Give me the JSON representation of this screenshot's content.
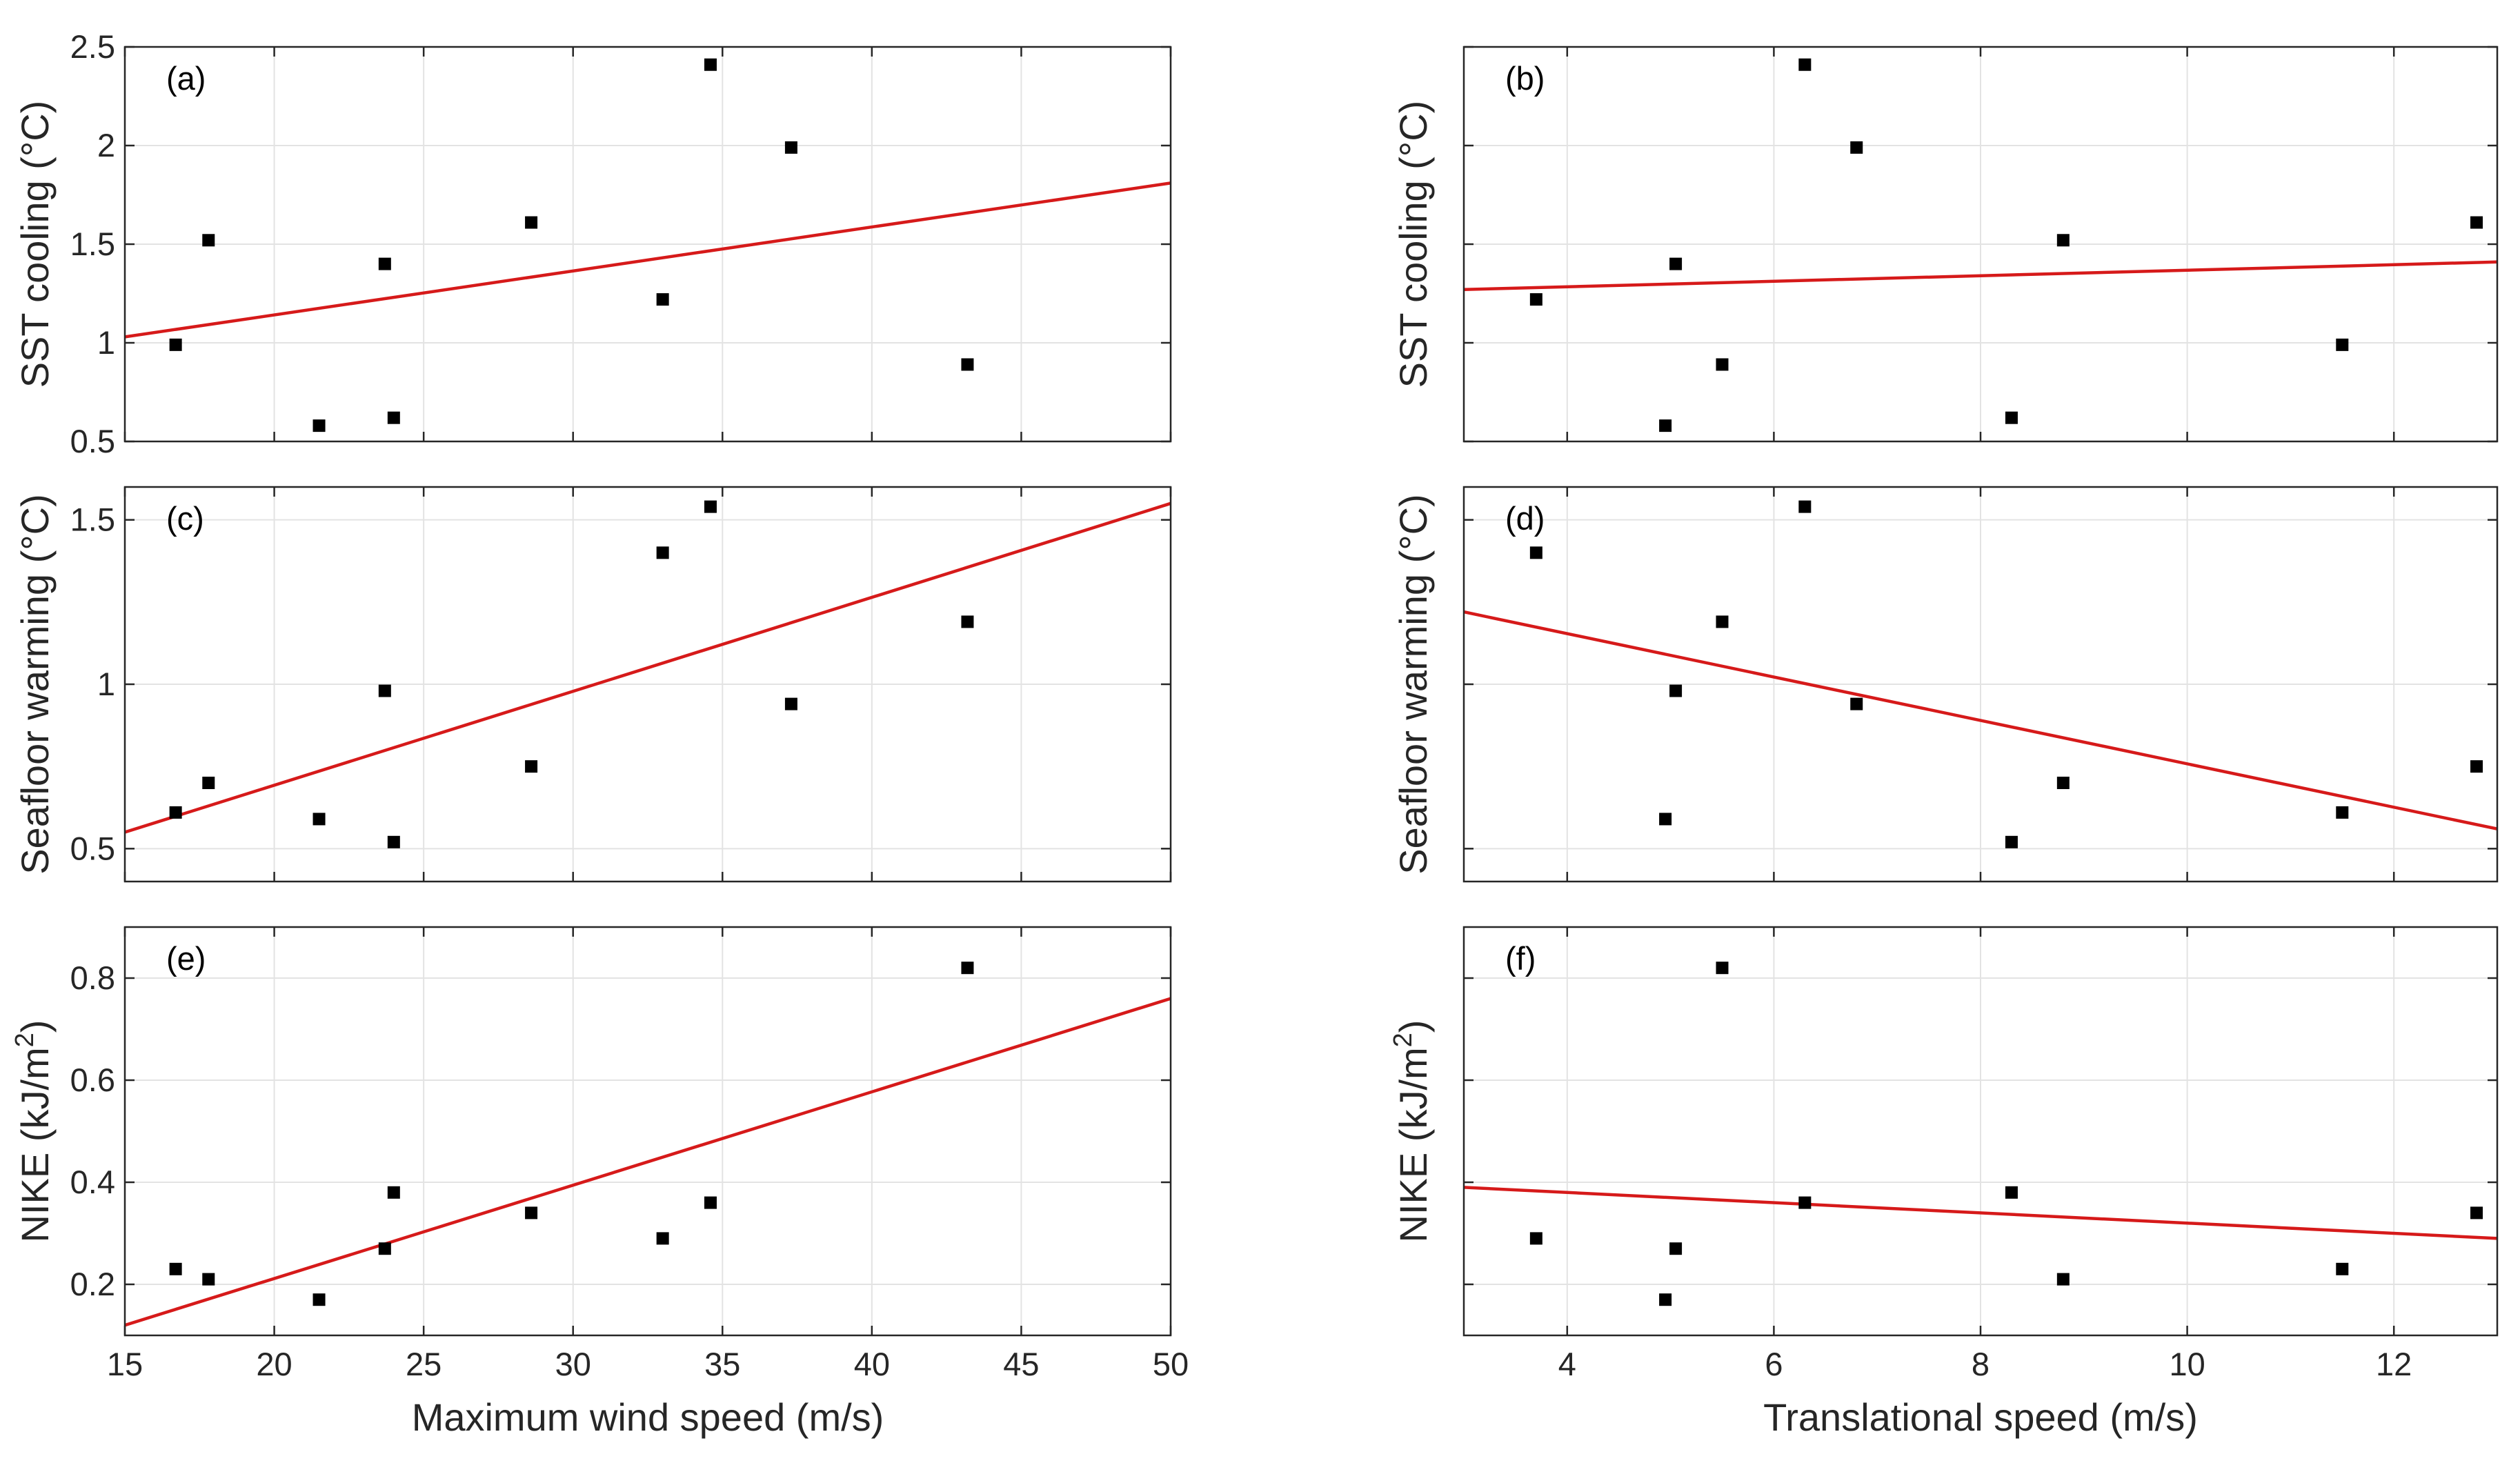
{
  "figure": {
    "background": "#ffffff",
    "point_color": "#000000",
    "fit_color": "#d61a1a"
  },
  "chart_data": [
    {
      "id": "a",
      "panel_label": "(a)",
      "type": "scatter",
      "ylabel": "SST cooling (°C)",
      "xlabel": "",
      "xlim": [
        15,
        50
      ],
      "ylim": [
        0.5,
        2.5
      ],
      "xticks": [
        15,
        20,
        25,
        30,
        35,
        40,
        45,
        50
      ],
      "yticks": [
        0.5,
        1,
        1.5,
        2,
        2.5
      ],
      "xticklabels": [
        "",
        "",
        "",
        "",
        "",
        "",
        "",
        ""
      ],
      "yticklabels": [
        "0.5",
        "1",
        "1.5",
        "2",
        "2.5"
      ],
      "points": {
        "x": [
          16.7,
          17.8,
          21.5,
          23.7,
          24.0,
          28.6,
          33.0,
          34.6,
          37.3,
          43.2
        ],
        "y": [
          0.99,
          1.52,
          0.58,
          1.4,
          0.62,
          1.61,
          1.22,
          2.41,
          1.99,
          0.89
        ]
      },
      "fit": {
        "x": [
          15,
          50
        ],
        "y": [
          1.03,
          1.81
        ]
      }
    },
    {
      "id": "b",
      "panel_label": "(b)",
      "type": "scatter",
      "ylabel": "SST cooling (°C)",
      "xlabel": "",
      "xlim": [
        3,
        13
      ],
      "ylim": [
        0.5,
        2.5
      ],
      "xticks": [
        4,
        6,
        8,
        10,
        12
      ],
      "yticks": [
        0.5,
        1,
        1.5,
        2,
        2.5
      ],
      "xticklabels": [
        "",
        "",
        "",
        "",
        ""
      ],
      "yticklabels": [
        "",
        "",
        "",
        "",
        ""
      ],
      "points": {
        "x": [
          3.7,
          4.95,
          5.05,
          5.5,
          6.3,
          6.8,
          8.3,
          8.8,
          11.5,
          12.8
        ],
        "y": [
          1.22,
          0.58,
          1.4,
          0.89,
          2.41,
          1.99,
          0.62,
          1.52,
          0.99,
          1.61
        ]
      },
      "fit": {
        "x": [
          3,
          13
        ],
        "y": [
          1.27,
          1.41
        ]
      }
    },
    {
      "id": "c",
      "panel_label": "(c)",
      "type": "scatter",
      "ylabel": "Seafloor warming (°C)",
      "xlabel": "",
      "xlim": [
        15,
        50
      ],
      "ylim": [
        0.4,
        1.6
      ],
      "xticks": [
        15,
        20,
        25,
        30,
        35,
        40,
        45,
        50
      ],
      "yticks": [
        0.5,
        1,
        1.5
      ],
      "xticklabels": [
        "",
        "",
        "",
        "",
        "",
        "",
        "",
        ""
      ],
      "yticklabels": [
        "0.5",
        "1",
        "1.5"
      ],
      "points": {
        "x": [
          16.7,
          17.8,
          21.5,
          23.7,
          24.0,
          28.6,
          33.0,
          34.6,
          37.3,
          43.2
        ],
        "y": [
          0.61,
          0.7,
          0.59,
          0.98,
          0.52,
          0.75,
          1.4,
          1.54,
          0.94,
          1.19
        ]
      },
      "fit": {
        "x": [
          15,
          50
        ],
        "y": [
          0.55,
          1.55
        ]
      }
    },
    {
      "id": "d",
      "panel_label": "(d)",
      "type": "scatter",
      "ylabel": "Seafloor warming (°C)",
      "xlabel": "",
      "xlim": [
        3,
        13
      ],
      "ylim": [
        0.4,
        1.6
      ],
      "xticks": [
        4,
        6,
        8,
        10,
        12
      ],
      "yticks": [
        0.5,
        1,
        1.5
      ],
      "xticklabels": [
        "",
        "",
        "",
        "",
        ""
      ],
      "yticklabels": [
        "",
        "",
        ""
      ],
      "points": {
        "x": [
          3.7,
          4.95,
          5.05,
          5.5,
          6.3,
          6.8,
          8.3,
          8.8,
          11.5,
          12.8
        ],
        "y": [
          1.4,
          0.59,
          0.98,
          1.19,
          1.54,
          0.94,
          0.52,
          0.7,
          0.61,
          0.75
        ]
      },
      "fit": {
        "x": [
          3,
          13
        ],
        "y": [
          1.22,
          0.56
        ]
      }
    },
    {
      "id": "e",
      "panel_label": "(e)",
      "type": "scatter",
      "ylabel": "NIKE (kJ/m",
      "ylabel_sup": "2",
      "ylabel_tail": ")",
      "xlabel": "Maximum wind speed (m/s)",
      "xlim": [
        15,
        50
      ],
      "ylim": [
        0.1,
        0.9
      ],
      "xticks": [
        15,
        20,
        25,
        30,
        35,
        40,
        45,
        50
      ],
      "yticks": [
        0.2,
        0.4,
        0.6,
        0.8
      ],
      "xticklabels": [
        "15",
        "20",
        "25",
        "30",
        "35",
        "40",
        "45",
        "50"
      ],
      "yticklabels": [
        "0.2",
        "0.4",
        "0.6",
        "0.8"
      ],
      "points": {
        "x": [
          16.7,
          17.8,
          21.5,
          23.7,
          24.0,
          28.6,
          33.0,
          34.6,
          43.2
        ],
        "y": [
          0.23,
          0.21,
          0.17,
          0.27,
          0.38,
          0.34,
          0.29,
          0.36,
          0.82
        ]
      },
      "fit": {
        "x": [
          15,
          50
        ],
        "y": [
          0.12,
          0.76
        ]
      }
    },
    {
      "id": "f",
      "panel_label": "(f)",
      "type": "scatter",
      "ylabel": "NIKE (kJ/m",
      "ylabel_sup": "2",
      "ylabel_tail": ")",
      "xlabel": "Translational speed (m/s)",
      "xlim": [
        3,
        13
      ],
      "ylim": [
        0.1,
        0.9
      ],
      "xticks": [
        4,
        6,
        8,
        10,
        12
      ],
      "yticks": [
        0.2,
        0.4,
        0.6,
        0.8
      ],
      "xticklabels": [
        "4",
        "6",
        "8",
        "10",
        "12"
      ],
      "yticklabels": [
        "",
        "",
        "",
        ""
      ],
      "points": {
        "x": [
          3.7,
          4.95,
          5.05,
          5.5,
          6.3,
          8.3,
          8.8,
          11.5,
          12.8
        ],
        "y": [
          0.29,
          0.17,
          0.27,
          0.82,
          0.36,
          0.38,
          0.21,
          0.23,
          0.34
        ]
      },
      "fit": {
        "x": [
          3,
          13
        ],
        "y": [
          0.39,
          0.29
        ]
      }
    }
  ]
}
